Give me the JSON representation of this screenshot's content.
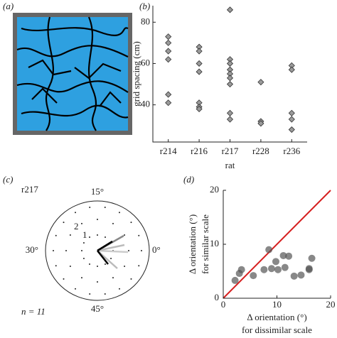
{
  "panels": [
    "(a)",
    "(b)",
    "(c)",
    "(d)"
  ],
  "polar": {
    "label": "r217",
    "n": "n = 11",
    "angle_labels": [
      "15°",
      "30°",
      "0°",
      "45°"
    ],
    "ring_labels": [
      "2",
      "1"
    ]
  },
  "chart_data": [
    {
      "type": "strip",
      "ylabel": "grid spacing (cm)",
      "xlabel": "rat",
      "categories": [
        "r214",
        "r216",
        "r217",
        "r228",
        "r236"
      ],
      "values": [
        [
          73,
          70,
          66,
          62,
          45,
          41
        ],
        [
          68,
          66,
          60,
          56,
          41,
          39,
          38
        ],
        [
          86,
          62,
          60,
          57,
          55,
          53,
          50,
          36,
          33
        ],
        [
          51,
          32,
          31
        ],
        [
          59,
          57,
          36,
          33,
          28
        ]
      ],
      "color": "#9a9a9a",
      "ylim": [
        22,
        88
      ],
      "yticks": [
        40,
        60,
        80
      ]
    },
    {
      "type": "scatter",
      "xlabel": [
        "Δ orientation (°)",
        "for dissimilar scale"
      ],
      "ylabel": [
        "Δ orientation (°)",
        "for similar scale"
      ],
      "x": [
        2.2,
        3.0,
        3.4,
        5.6,
        7.6,
        8.5,
        9.0,
        9.8,
        10.2,
        11.2,
        11.5,
        12.2,
        13.2,
        14.5,
        16.0,
        16.5,
        16.0
      ],
      "y": [
        3.3,
        4.6,
        5.3,
        4.2,
        5.3,
        9.0,
        5.5,
        6.8,
        5.3,
        7.9,
        5.7,
        7.8,
        4.1,
        4.3,
        5.5,
        7.4,
        5.3
      ],
      "color": "#555555",
      "line_color": "#d62020",
      "xlim": [
        0,
        20
      ],
      "ylim": [
        0,
        20
      ],
      "xticks": [
        0,
        10,
        20
      ],
      "yticks": [
        0,
        10,
        20
      ]
    }
  ]
}
